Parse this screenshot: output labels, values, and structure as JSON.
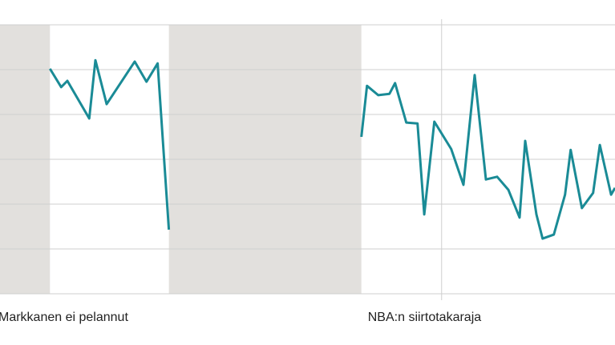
{
  "chart_data": {
    "type": "line",
    "x": [
      8.9,
      10.9,
      12,
      15.9,
      17,
      19,
      24,
      26.1,
      28.1,
      30.1,
      47,
      64.4,
      65.4,
      67.4,
      69.4,
      70.4,
      72.4,
      74.4,
      75.6,
      77.4,
      80.4,
      82.6,
      84.6,
      86.6,
      88.6,
      90.6,
      92.6,
      93.6,
      95.6,
      96.7,
      98.7,
      100.7,
      101.7,
      103.7,
      105.7,
      106.9,
      108.9,
      109.6
    ],
    "series": [
      {
        "color": "#1a8b96",
        "values": [
          5.02,
          4.61,
          4.75,
          3.91,
          5.21,
          4.23,
          5.18,
          4.73,
          5.14,
          1.43,
          null,
          3.5,
          4.64,
          4.43,
          4.46,
          4.7,
          3.82,
          3.8,
          1.77,
          3.84,
          3.23,
          2.43,
          4.88,
          2.55,
          2.61,
          2.32,
          1.7,
          3.41,
          1.77,
          1.23,
          1.32,
          2.21,
          3.21,
          1.91,
          2.25,
          3.32,
          2.21,
          2.36
        ]
      }
    ],
    "xlim": [
      0,
      109.6
    ],
    "ylim": [
      0,
      6
    ],
    "yticks": [
      0,
      1,
      2,
      3,
      4,
      5,
      6
    ],
    "grid": true,
    "shaded_ranges": [
      [
        0,
        8.9
      ],
      [
        30.1,
        64.4
      ]
    ],
    "shade_color": "#e2e0dd",
    "annotations": [
      {
        "text": "Markkanen ei pelannut",
        "x": 0
      },
      {
        "text": "NBA:n siirtotakaraja",
        "x": 78.7
      }
    ],
    "marker_line_x": 78.7
  }
}
